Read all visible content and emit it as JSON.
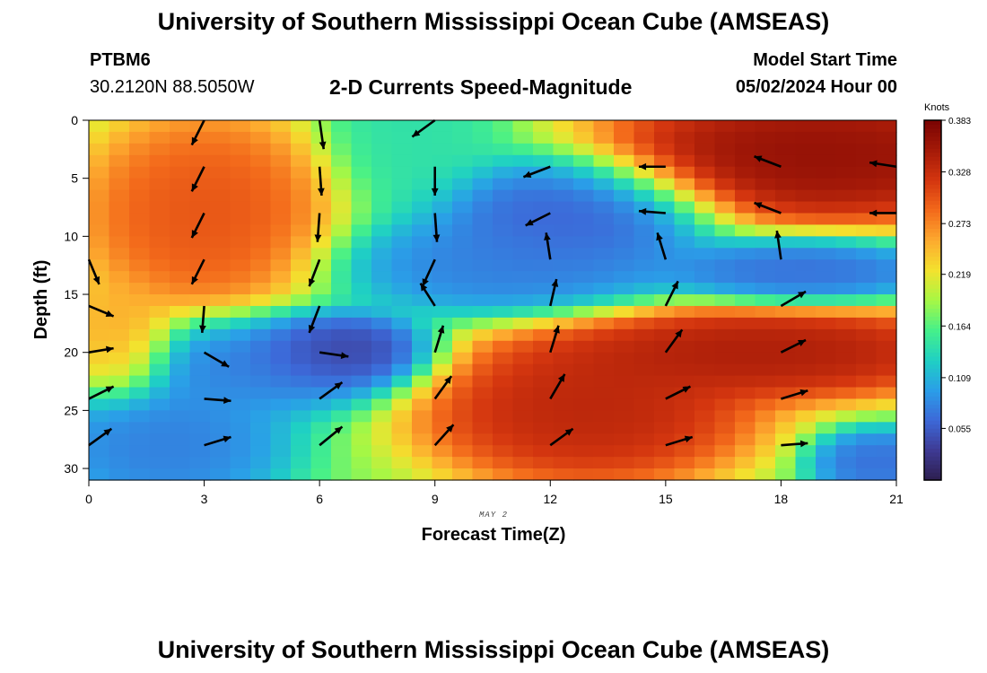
{
  "header": {
    "title": "University of Southern Mississippi Ocean Cube (AMSEAS)",
    "station": "PTBM6",
    "coordinates": "30.2120N  88.5050W",
    "subtitle": "2-D Currents Speed-Magnitude",
    "start_label": "Model Start Time",
    "start_value": "05/02/2024 Hour 00"
  },
  "footer": {
    "title": "University of Southern Mississippi Ocean Cube (AMSEAS)"
  },
  "colors": {
    "scale": [
      "#2d1e4e",
      "#3e3a93",
      "#3d68d8",
      "#2a9ee8",
      "#1fd0c4",
      "#45f08a",
      "#a6f745",
      "#f3e22e",
      "#fdaa2f",
      "#f36a1b",
      "#d4360f",
      "#a51a08",
      "#7a0403"
    ],
    "arrow": "#000000",
    "background": "#ffffff"
  },
  "chart_data": {
    "type": "heatmap",
    "title": "2-D Currents Speed-Magnitude",
    "xlabel": "Forecast Time(Z)",
    "ylabel": "Depth (ft)",
    "x_sublabel": "MAY 2",
    "xlim": [
      0,
      21
    ],
    "ylim": [
      0,
      31
    ],
    "y_inverted": true,
    "x_ticks": [
      0,
      3,
      6,
      9,
      12,
      15,
      18,
      21
    ],
    "y_ticks": [
      0,
      5,
      10,
      15,
      20,
      25,
      30
    ],
    "colorbar": {
      "label": "Knots",
      "min": 0.0,
      "max": 0.383,
      "ticks": [
        0.055,
        0.109,
        0.164,
        0.219,
        0.273,
        0.328,
        0.383
      ]
    },
    "field_centers": [
      {
        "x": 3.0,
        "y": 8.0,
        "value": 0.31,
        "sx": 2.2,
        "sy": 6.0
      },
      {
        "x": 0.8,
        "y": 19.0,
        "value": 0.26,
        "sx": 1.0,
        "sy": 3.5
      },
      {
        "x": 6.5,
        "y": 20.0,
        "value": 0.02,
        "sx": 1.6,
        "sy": 2.2
      },
      {
        "x": 4.5,
        "y": 21.0,
        "value": 0.07,
        "sx": 2.5,
        "sy": 3.0
      },
      {
        "x": 2.0,
        "y": 28.0,
        "value": 0.07,
        "sx": 2.2,
        "sy": 4.0
      },
      {
        "x": 12.5,
        "y": 8.0,
        "value": 0.05,
        "sx": 2.5,
        "sy": 3.5
      },
      {
        "x": 11.0,
        "y": 12.5,
        "value": 0.07,
        "sx": 3.0,
        "sy": 3.0
      },
      {
        "x": 18.5,
        "y": 13.0,
        "value": 0.06,
        "sx": 2.5,
        "sy": 2.0
      },
      {
        "x": 19.0,
        "y": 3.0,
        "value": 0.38,
        "sx": 4.0,
        "sy": 4.0
      },
      {
        "x": 13.0,
        "y": 25.0,
        "value": 0.35,
        "sx": 3.0,
        "sy": 4.5
      },
      {
        "x": 17.5,
        "y": 20.0,
        "value": 0.36,
        "sx": 4.0,
        "sy": 2.8
      },
      {
        "x": 8.5,
        "y": 0.5,
        "value": 0.14,
        "sx": 1.5,
        "sy": 5.0
      },
      {
        "x": 20.5,
        "y": 29.5,
        "value": 0.06,
        "sx": 1.2,
        "sy": 2.0
      }
    ],
    "vectors": [
      {
        "t": 0,
        "depth": 12,
        "u": 0.05,
        "v": -0.12
      },
      {
        "t": 0,
        "depth": 16,
        "u": 0.12,
        "v": -0.05
      },
      {
        "t": 0,
        "depth": 20,
        "u": 0.12,
        "v": 0.02
      },
      {
        "t": 0,
        "depth": 24,
        "u": 0.12,
        "v": 0.06
      },
      {
        "t": 0,
        "depth": 28,
        "u": 0.11,
        "v": 0.08
      },
      {
        "t": 3,
        "depth": 0,
        "u": -0.06,
        "v": -0.12
      },
      {
        "t": 3,
        "depth": 4,
        "u": -0.06,
        "v": -0.12
      },
      {
        "t": 3,
        "depth": 8,
        "u": -0.06,
        "v": -0.12
      },
      {
        "t": 3,
        "depth": 12,
        "u": -0.06,
        "v": -0.12
      },
      {
        "t": 3,
        "depth": 16,
        "u": -0.01,
        "v": -0.13
      },
      {
        "t": 3,
        "depth": 20,
        "u": 0.12,
        "v": -0.07
      },
      {
        "t": 3,
        "depth": 24,
        "u": 0.13,
        "v": -0.01
      },
      {
        "t": 3,
        "depth": 28,
        "u": 0.13,
        "v": 0.04
      },
      {
        "t": 6,
        "depth": 0,
        "u": 0.02,
        "v": -0.14
      },
      {
        "t": 6,
        "depth": 4,
        "u": 0.01,
        "v": -0.14
      },
      {
        "t": 6,
        "depth": 8,
        "u": -0.01,
        "v": -0.14
      },
      {
        "t": 6,
        "depth": 12,
        "u": -0.05,
        "v": -0.13
      },
      {
        "t": 6,
        "depth": 16,
        "u": -0.05,
        "v": -0.13
      },
      {
        "t": 6,
        "depth": 20,
        "u": 0.14,
        "v": -0.02
      },
      {
        "t": 6,
        "depth": 24,
        "u": 0.11,
        "v": 0.08
      },
      {
        "t": 6,
        "depth": 28,
        "u": 0.11,
        "v": 0.09
      },
      {
        "t": 9,
        "depth": 0,
        "u": -0.11,
        "v": -0.08
      },
      {
        "t": 9,
        "depth": 4,
        "u": 0.0,
        "v": -0.14
      },
      {
        "t": 9,
        "depth": 8,
        "u": 0.01,
        "v": -0.14
      },
      {
        "t": 9,
        "depth": 12,
        "u": -0.06,
        "v": -0.13
      },
      {
        "t": 9,
        "depth": 16,
        "u": -0.07,
        "v": 0.11
      },
      {
        "t": 9,
        "depth": 20,
        "u": 0.04,
        "v": 0.13
      },
      {
        "t": 9,
        "depth": 24,
        "u": 0.08,
        "v": 0.11
      },
      {
        "t": 9,
        "depth": 28,
        "u": 0.09,
        "v": 0.1
      },
      {
        "t": 12,
        "depth": 4,
        "u": -0.13,
        "v": -0.05
      },
      {
        "t": 12,
        "depth": 8,
        "u": -0.12,
        "v": -0.06
      },
      {
        "t": 12,
        "depth": 12,
        "u": -0.02,
        "v": 0.13
      },
      {
        "t": 12,
        "depth": 16,
        "u": 0.03,
        "v": 0.13
      },
      {
        "t": 12,
        "depth": 20,
        "u": 0.04,
        "v": 0.13
      },
      {
        "t": 12,
        "depth": 24,
        "u": 0.07,
        "v": 0.12
      },
      {
        "t": 12,
        "depth": 28,
        "u": 0.11,
        "v": 0.08
      },
      {
        "t": 15,
        "depth": 4,
        "u": -0.13,
        "v": 0.0
      },
      {
        "t": 15,
        "depth": 8,
        "u": -0.13,
        "v": 0.01
      },
      {
        "t": 15,
        "depth": 12,
        "u": -0.04,
        "v": 0.13
      },
      {
        "t": 15,
        "depth": 16,
        "u": 0.06,
        "v": 0.12
      },
      {
        "t": 15,
        "depth": 20,
        "u": 0.08,
        "v": 0.11
      },
      {
        "t": 15,
        "depth": 24,
        "u": 0.12,
        "v": 0.06
      },
      {
        "t": 15,
        "depth": 28,
        "u": 0.13,
        "v": 0.04
      },
      {
        "t": 18,
        "depth": 4,
        "u": -0.13,
        "v": 0.05
      },
      {
        "t": 18,
        "depth": 8,
        "u": -0.13,
        "v": 0.05
      },
      {
        "t": 18,
        "depth": 12,
        "u": -0.02,
        "v": 0.14
      },
      {
        "t": 18,
        "depth": 16,
        "u": 0.12,
        "v": 0.07
      },
      {
        "t": 18,
        "depth": 20,
        "u": 0.12,
        "v": 0.06
      },
      {
        "t": 18,
        "depth": 24,
        "u": 0.13,
        "v": 0.04
      },
      {
        "t": 18,
        "depth": 28,
        "u": 0.13,
        "v": 0.01
      },
      {
        "t": 21,
        "depth": 4,
        "u": -0.13,
        "v": 0.02
      },
      {
        "t": 21,
        "depth": 8,
        "u": -0.13,
        "v": 0.0
      }
    ]
  }
}
